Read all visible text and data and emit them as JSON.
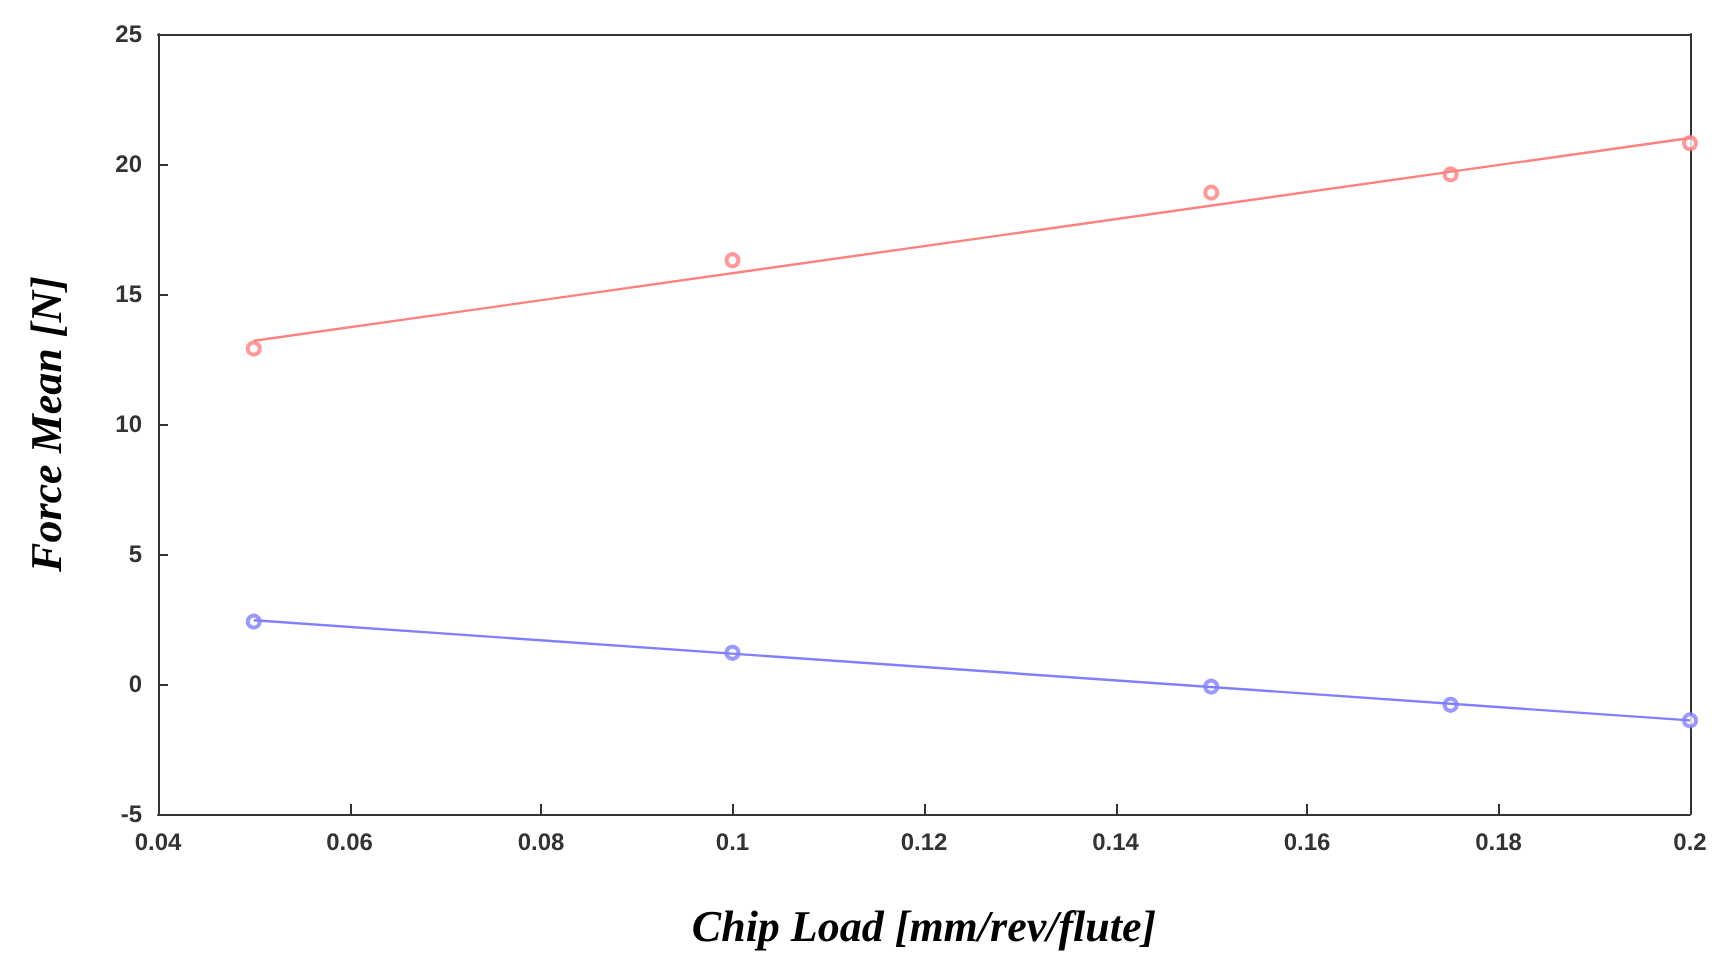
{
  "chart_data": {
    "type": "scatter",
    "xlabel": "Chip Load [mm/rev/flute]",
    "ylabel": "Force Mean [N]",
    "xlim": [
      0.04,
      0.2
    ],
    "xticks": [
      0.04,
      0.06,
      0.08,
      0.1,
      0.12,
      0.14,
      0.16,
      0.18,
      0.2
    ],
    "ylim": [
      -5,
      25
    ],
    "yticks": [
      -5,
      0,
      5,
      10,
      15,
      20,
      25
    ],
    "grid": false,
    "series": [
      {
        "marker": "circle",
        "color": "#ff8080",
        "x": [
          0.05,
          0.1,
          0.15,
          0.175,
          0.2
        ],
        "values": [
          12.9,
          16.3,
          18.9,
          19.6,
          20.8
        ]
      },
      {
        "type": "line",
        "marker": "none",
        "color": "#ff8080",
        "x": [
          0.05,
          0.2
        ],
        "values": [
          13.2,
          21.0
        ]
      },
      {
        "marker": "circle",
        "color": "#8080ff",
        "x": [
          0.05,
          0.1,
          0.15,
          0.175,
          0.2
        ],
        "values": [
          2.4,
          1.2,
          -0.1,
          -0.8,
          -1.4
        ]
      },
      {
        "type": "line",
        "marker": "none",
        "color": "#8080ff",
        "x": [
          0.05,
          0.2
        ],
        "values": [
          2.45,
          -1.4
        ]
      }
    ]
  }
}
